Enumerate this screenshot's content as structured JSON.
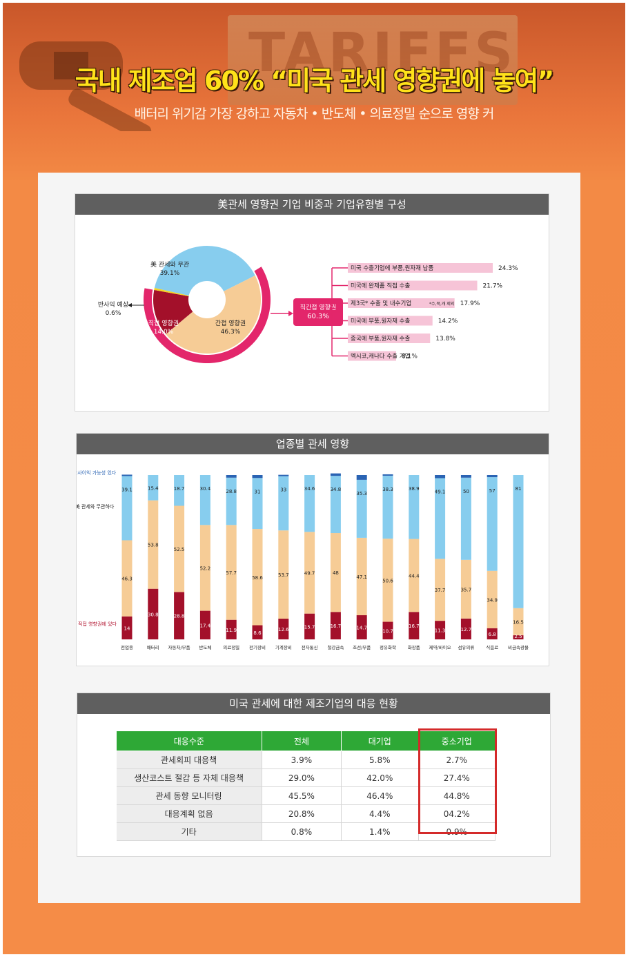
{
  "header": {
    "background_word": "TARIFFS",
    "headline": "국내 제조업 60% “미국 관세 영향권에 놓여”",
    "subheadline": "배터리 위기감 가장 강하고 자동차 • 반도체 • 의료정밀 순으로 영향 커"
  },
  "colors": {
    "orange_bg": "#f58c47",
    "headline": "#ffe21a",
    "light_blue": "#87cdee",
    "peach": "#f6cc96",
    "dark_red": "#a3102a",
    "yellow": "#f3d323",
    "magenta": "#e3266b",
    "pink_bar": "#f6c4d7",
    "table_green": "#2ea836",
    "highlight_red": "#d42a2a"
  },
  "section1": {
    "title": "美관세 영향권 기업 비중과 기업유형별 구성",
    "pie_labels": {
      "unrelated": "美 관세와 무관",
      "unrelated_value": "39.1%",
      "indirect": "간접 영향권",
      "indirect_value": "46.3%",
      "direct": "직접 영향권",
      "direct_value": "14.0%",
      "benefit": "반사익 예상",
      "benefit_value": "0.6%"
    },
    "center_box": {
      "label": "직간접 영향권",
      "value": "60.3%"
    },
    "breakdown_note": "*수,북,캐 제외"
  },
  "section2": {
    "title": "업종별 관세 영향",
    "legend": {
      "benefit": "반사이익 가능성 있다",
      "unrelated": "美 관세와 무관하다",
      "direct": "직접 영향권에 있다"
    }
  },
  "section3": {
    "title": "미국 관세에 대한 제조기업의 대응 현황",
    "headers": [
      "대응수준",
      "전체",
      "대기업",
      "중소기업"
    ],
    "rows": [
      {
        "label": "관세회피 대응책",
        "total": "3.9%",
        "large": "5.8%",
        "sme": "2.7%"
      },
      {
        "label": "생산코스트 절감 등 자체 대응책",
        "total": "29.0%",
        "large": "42.0%",
        "sme": "27.4%"
      },
      {
        "label": "관세 동향 모니터링",
        "total": "45.5%",
        "large": "46.4%",
        "sme": "44.8%"
      },
      {
        "label": "대응계획 없음",
        "total": "20.8%",
        "large": "4.4%",
        "sme": "04.2%"
      },
      {
        "label": "기타",
        "total": "0.8%",
        "large": "1.4%",
        "sme": "0.9%"
      }
    ]
  },
  "chart_data": [
    {
      "type": "pie",
      "title": "美관세 영향권 기업 비중과 기업유형별 구성",
      "categories": [
        "美 관세와 무관",
        "간접 영향권",
        "직접 영향권",
        "반사익 예상"
      ],
      "values": [
        39.1,
        46.3,
        14.0,
        0.6
      ],
      "outer_ring": {
        "label": "직간접 영향권",
        "value": 60.3
      }
    },
    {
      "type": "bar",
      "orientation": "horizontal",
      "title": "직간접 영향권 기업유형별 구성",
      "categories": [
        "미국 수출기업에 부품,원자재 납품",
        "미국에 완제품 직접 수출",
        "제3국* 수출 및 내수기업",
        "미국에 부품,원자재 수출",
        "중국에 부품,원자재 수출",
        "멕시코,캐나다 수출 기업"
      ],
      "values": [
        24.3,
        21.7,
        17.9,
        14.2,
        13.8,
        8.1
      ],
      "labels": [
        "24.3%",
        "21.7%",
        "17.9%",
        "14.2%",
        "13.8%",
        "8.1%"
      ]
    },
    {
      "type": "bar",
      "stacked": true,
      "title": "업종별 관세 영향",
      "categories": [
        "전업종",
        "배터리",
        "자동차/부품",
        "반도체",
        "의료정밀",
        "전기장비",
        "기계장비",
        "전자통신",
        "철강금속",
        "조선/부품",
        "정유화학",
        "화장품",
        "제약/바이오",
        "섬유의류",
        "식음료",
        "비금속광물"
      ],
      "ylim": [
        0,
        100
      ],
      "series": [
        {
          "name": "직접 영향권에 있다",
          "values": [
            14,
            30.8,
            28.8,
            17.4,
            11.9,
            8.6,
            12.6,
            15.7,
            16.7,
            14.7,
            10.7,
            16.7,
            11.3,
            12.7,
            6.8,
            2.5
          ],
          "labels": [
            "14",
            "30.8",
            "28.8",
            "17.4",
            "11.9",
            "8.6",
            "12.6",
            "15.7",
            "16.7",
            "14.7",
            "10.7",
            "16.7",
            "11.3",
            "12.7",
            "6.8",
            "2.5"
          ]
        },
        {
          "name": "간접 영향권",
          "values": [
            46.3,
            53.8,
            52.5,
            52.2,
            57.7,
            58.6,
            53.7,
            49.7,
            48,
            47.1,
            50.6,
            44.4,
            37.7,
            35.7,
            34.9,
            16.5
          ],
          "labels": [
            "46.3",
            "53.8",
            "52.5",
            "52.2",
            "57.7",
            "58.6",
            "53.7",
            "49.7",
            "48",
            "47.1",
            "50.6",
            "44.4",
            "37.7",
            "35.7",
            "34.9",
            "16.5"
          ]
        },
        {
          "name": "美 관세와 무관하다",
          "values": [
            39.1,
            15.4,
            18.7,
            30.4,
            28.8,
            31,
            33,
            34.6,
            34.8,
            35.3,
            38.3,
            38.9,
            49.1,
            50,
            57,
            81
          ],
          "labels": [
            "39.1",
            "15.4",
            "18.7",
            "30.4",
            "28.8",
            "31",
            "33",
            "34.6",
            "34.8",
            "35.3",
            "38.3",
            "38.9",
            "49.1",
            "50",
            "57",
            "81"
          ]
        },
        {
          "name": "반사이익 가능성 있다",
          "values": [
            0.6,
            0,
            0,
            0,
            1.6,
            1.8,
            0.7,
            0,
            1.5,
            2.9,
            0.4,
            0,
            1.9,
            1.6,
            1.3,
            0
          ]
        }
      ]
    }
  ]
}
